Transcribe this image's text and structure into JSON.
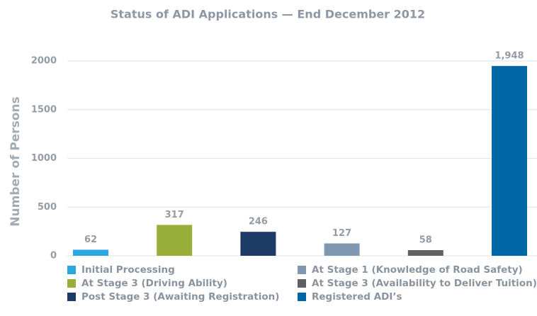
{
  "chart_data": {
    "type": "bar",
    "title": "Status of ADI Applications — End December 2012",
    "y_label": "Number of Persons",
    "categories": [
      "Initial Processing",
      "At Stage 3 (Driving Ability)",
      "Post Stage 3 (Awaiting Registration)",
      "At Stage 1 (Knowledge of Road Safety)",
      "At Stage 3 (Availability to Deliver Tuition)",
      "Registered ADI’s"
    ],
    "values": [
      62,
      317,
      246,
      127,
      58,
      1948
    ],
    "value_labels": [
      "62",
      "317",
      "246",
      "127",
      "58",
      "1,948"
    ],
    "colors": [
      "#29a8e0",
      "#9aae3a",
      "#1e3a66",
      "#7f9ab0",
      "#5f6062",
      "#0067a6"
    ],
    "ylim": [
      0,
      2000
    ],
    "yticks": [
      0,
      500,
      1000,
      1500,
      2000
    ],
    "grid": true
  }
}
